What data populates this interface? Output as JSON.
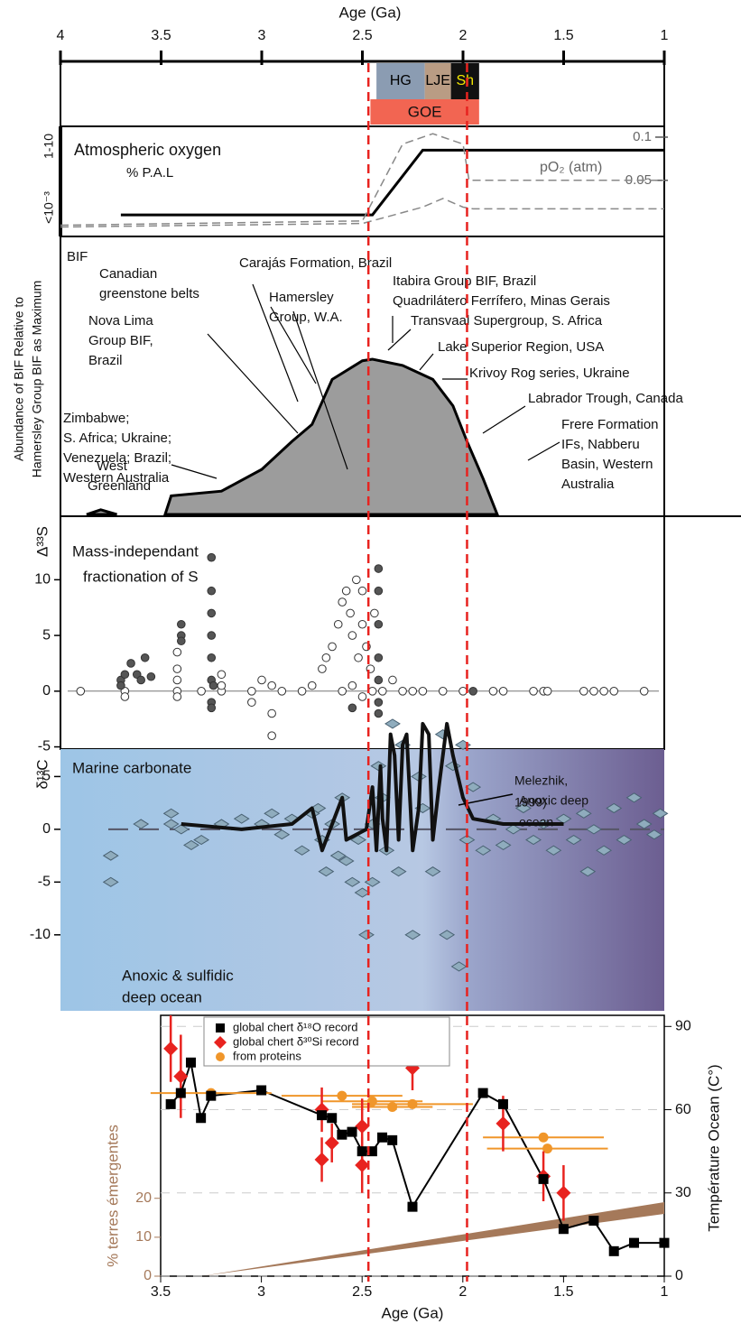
{
  "chart_data": [
    {
      "type": "axis",
      "title": "Age (Ga)",
      "xlim": [
        4,
        1
      ],
      "xticks": [
        4,
        3.5,
        3,
        2.5,
        2,
        1.5,
        1
      ]
    },
    {
      "type": "timeline",
      "xlim": [
        4,
        1
      ],
      "periods": [
        {
          "label": "HG",
          "start": 2.43,
          "end": 2.19,
          "color": "#8b9cb2",
          "text_color": "#000000"
        },
        {
          "label": "LJE",
          "start": 2.19,
          "end": 2.06,
          "color": "#b99c84",
          "text_color": "#000000"
        },
        {
          "label": "Sh",
          "start": 2.06,
          "end": 1.92,
          "color": "#111111",
          "text_color": "#f2e600"
        }
      ],
      "event": {
        "label": "GOE",
        "start": 2.46,
        "end": 1.92,
        "color": "#f26552",
        "text_color": "#111111"
      },
      "markers": [
        2.47,
        1.98
      ],
      "marker_color": "#e8231f"
    },
    {
      "type": "line",
      "title": "Atmospheric oxygen",
      "subtitle": "% P.A.L",
      "left_labels": [
        "1-10",
        "<10⁻³"
      ],
      "y2label": "pO₂ (atm)",
      "xlim": [
        4,
        1
      ],
      "y2lim": [
        -0.015,
        0.1125
      ],
      "y2ticks": [
        0.1,
        0.05
      ],
      "series": [
        {
          "color": "#000000",
          "dashed": false,
          "axis": "y2",
          "x": [
            3.7,
            2.45,
            2.2,
            1
          ],
          "values": [
            0.01,
            0.01,
            0.085,
            0.085
          ]
        },
        {
          "color": "#888888",
          "dashed": true,
          "axis": "y2",
          "x": [
            4,
            2.5,
            2.3,
            2.15,
            2.0,
            1.97,
            1
          ],
          "values": [
            -0.002,
            0.003,
            0.092,
            0.104,
            0.092,
            0.05,
            0.05
          ]
        },
        {
          "color": "#888888",
          "dashed": true,
          "axis": "y2",
          "x": [
            4,
            2.5,
            2.2,
            2.1,
            2.0,
            1.95,
            1
          ],
          "values": [
            -0.004,
            0,
            0.019,
            0.029,
            0.019,
            0.017,
            0.017
          ]
        }
      ]
    },
    {
      "type": "area",
      "title": "BIF",
      "ylabel": [
        "Abundance of BIF Relative to",
        "Hamersley Group BIF as Maximum"
      ],
      "xlim": [
        4,
        1
      ],
      "ylim": [
        0,
        100
      ],
      "color": "#9c9c9c",
      "x": [
        3.87,
        3.8,
        3.72,
        3.6,
        3.48,
        3.45,
        3.2,
        3.0,
        2.85,
        2.75,
        2.65,
        2.5,
        2.45,
        2.3,
        2.15,
        2.05,
        1.98,
        1.9,
        1.83
      ],
      "values": [
        0,
        3,
        0,
        null,
        0,
        12,
        15,
        29,
        47,
        58,
        87,
        99,
        100,
        96,
        87,
        70,
        47,
        23,
        0
      ],
      "annotations": [
        [
          "Carajás Formation, Brazil"
        ],
        [
          "Canadian",
          "greenstone belts"
        ],
        [
          "Hamersley",
          "Group, W.A."
        ],
        [
          "Itabira Group BIF, Brazil",
          "Quadrilátero Ferrífero, Minas Gerais"
        ],
        [
          "Transvaal Supergroup, S. Africa"
        ],
        [
          "Lake Superior Region, USA"
        ],
        [
          "Krivoy Rog series, Ukraine"
        ],
        [
          "Labrador Trough, Canada"
        ],
        [
          "Frere Formation",
          "IFs, Nabberu",
          "Basin, Western",
          "Australia"
        ],
        [
          "Nova Lima",
          "Group BIF,",
          "Brazil"
        ],
        [
          "Zimbabwe;",
          "S. Africa; Ukraine;",
          "Venezuela; Brazil;",
          "Western Australia"
        ],
        [
          "West",
          "Greenland"
        ]
      ]
    },
    {
      "type": "scatter",
      "title": [
        "Mass-independant",
        "fractionation of S"
      ],
      "ylabel": "Δ³³S",
      "xlim": [
        4,
        1
      ],
      "ylim": [
        -5.2,
        15.7
      ],
      "yticks": [
        -5,
        0,
        5,
        10
      ],
      "series": [
        {
          "color": "#ffffff",
          "x": [
            3.9,
            3.68,
            3.68,
            3.42,
            3.42,
            3.42,
            3.42,
            3.42,
            3.3,
            3.2,
            3.2,
            3.2,
            3.05,
            3.05,
            3.0,
            2.95,
            2.95,
            2.95,
            2.9,
            2.8,
            2.75,
            2.7,
            2.68,
            2.65,
            2.62,
            2.6,
            2.58,
            2.56,
            2.55,
            2.53,
            2.52,
            2.5,
            2.5,
            2.48,
            2.46,
            2.45,
            2.44,
            2.6,
            2.55,
            2.5,
            2.4,
            2.35,
            2.3,
            2.25,
            2.2,
            2.1,
            2.0,
            1.85,
            1.8,
            1.65,
            1.6,
            1.58,
            1.4,
            1.35,
            1.3,
            1.25,
            1.1
          ],
          "values": [
            0,
            0,
            -0.5,
            0,
            1,
            2,
            3.5,
            -0.5,
            0,
            0,
            1.5,
            0.5,
            0,
            -1,
            1,
            0.5,
            -2,
            -4,
            0,
            0,
            0.5,
            2,
            3,
            4,
            6,
            8,
            9,
            7,
            5,
            10,
            3,
            6,
            9,
            4,
            2,
            0,
            7,
            0,
            0.5,
            -0.5,
            0,
            1,
            0,
            0,
            0,
            0,
            0,
            0,
            0,
            0,
            0,
            0,
            0,
            0,
            0,
            0,
            0
          ]
        },
        {
          "color": "#555555",
          "x": [
            3.7,
            3.68,
            3.65,
            3.62,
            3.6,
            3.58,
            3.55,
            3.7,
            3.4,
            3.4,
            3.4,
            3.25,
            3.25,
            3.25,
            3.25,
            3.25,
            3.25,
            3.25,
            3.25,
            3.24,
            2.55,
            2.42,
            2.42,
            2.42,
            2.42,
            2.42,
            2.42,
            2.42,
            1.95
          ],
          "values": [
            1,
            1.5,
            2.5,
            1.5,
            1,
            3,
            1.3,
            0.5,
            6,
            5,
            4.5,
            12,
            9,
            7,
            5,
            3,
            1,
            -1,
            -1.5,
            0.5,
            -1.5,
            11,
            9,
            6,
            3,
            1,
            -1,
            -2,
            0
          ]
        }
      ]
    },
    {
      "type": "scatter",
      "title": "Marine carbonate",
      "ylabel": "δ¹³C",
      "xlim": [
        4,
        1
      ],
      "ylim": [
        -17.2,
        7.6
      ],
      "yticks": [
        -10,
        -5,
        0,
        5
      ],
      "annotations": [
        [
          "Melezhik,",
          "1999)"
        ],
        [
          "Anoxic deep",
          "ocean"
        ],
        [
          "Anoxic & sulfidic",
          "deep ocean"
        ]
      ],
      "points": {
        "color": "#8facbd",
        "x": [
          3.75,
          3.75,
          3.6,
          3.45,
          3.45,
          3.4,
          3.35,
          3.3,
          3.2,
          3.1,
          3.0,
          2.95,
          2.9,
          2.85,
          2.8,
          2.75,
          2.72,
          2.7,
          2.68,
          2.65,
          2.62,
          2.6,
          2.58,
          2.55,
          2.52,
          2.5,
          2.48,
          2.45,
          2.45,
          2.42,
          2.4,
          2.38,
          2.35,
          2.32,
          2.3,
          2.25,
          2.22,
          2.2,
          2.15,
          2.1,
          2.08,
          2.05,
          2.02,
          2.0,
          1.98,
          1.95,
          1.9,
          1.85,
          1.8,
          1.75,
          1.7,
          1.65,
          1.6,
          1.55,
          1.5,
          1.45,
          1.4,
          1.38,
          1.35,
          1.3,
          1.25,
          1.2,
          1.15,
          1.1,
          1.05,
          1.02
        ],
        "values": [
          -2.5,
          -5,
          0.5,
          1.5,
          0.5,
          0,
          -1.5,
          -1,
          0.5,
          1,
          0.5,
          1.5,
          -0.5,
          1,
          -2,
          1.5,
          2,
          -1,
          -4,
          0.5,
          -2.5,
          3,
          -3,
          -5,
          -1,
          -6,
          -10,
          -5,
          0.5,
          6,
          3,
          -2,
          10,
          -4,
          8,
          -10,
          5,
          2,
          -4,
          9,
          -10,
          6,
          -13,
          8,
          -1,
          4,
          -2,
          1,
          -1.5,
          0,
          2,
          -1,
          0.5,
          -2,
          1,
          -1,
          1.5,
          -4,
          0,
          -2,
          2,
          -1,
          3,
          0.5,
          -0.5,
          1.5
        ]
      },
      "curve": {
        "color": "#111111",
        "x": [
          3.4,
          3.1,
          2.85,
          2.75,
          2.7,
          2.6,
          2.58,
          2.48,
          2.45,
          2.43,
          2.41,
          2.4,
          2.38,
          2.36,
          2.34,
          2.32,
          2.3,
          2.28,
          2.25,
          2.22,
          2.2,
          2.17,
          2.15,
          2.12,
          2.08,
          2.05,
          2.0,
          1.95,
          1.8,
          1.5
        ],
        "values": [
          0.5,
          0,
          0.5,
          2,
          -2,
          3,
          -1,
          0,
          4,
          -2,
          6,
          1,
          -2,
          9,
          7,
          -1,
          8,
          9,
          -2,
          2,
          10,
          9,
          -1,
          4,
          10,
          7,
          3,
          1,
          0.5,
          0.5
        ]
      }
    },
    {
      "type": "scatter",
      "xlabel": "Age (Ga)",
      "ylabel": "% terres émergentes",
      "y2label": "Température Ocean (C°)",
      "xlim": [
        3.5,
        1
      ],
      "xticks": [
        3.5,
        3,
        2.5,
        2,
        1.5,
        1
      ],
      "ylim": [
        0,
        67
      ],
      "yticks": [
        0,
        10,
        20
      ],
      "y2lim": [
        0,
        94
      ],
      "y2ticks": [
        0,
        30,
        60,
        90
      ],
      "label_color": "#a5795a",
      "band": {
        "color": "#a5795a",
        "x": [
          3.3,
          1
        ],
        "low": [
          0,
          16
        ],
        "high": [
          0,
          19
        ]
      },
      "series": [
        {
          "name": "global chert δ¹⁸O record",
          "color": "#000000",
          "marker": "square",
          "axis": "y2",
          "x": [
            3.45,
            3.4,
            3.35,
            3.3,
            3.25,
            3.0,
            2.7,
            2.65,
            2.6,
            2.55,
            2.5,
            2.45,
            2.4,
            2.35,
            2.25,
            1.9,
            1.8,
            1.6,
            1.5,
            1.35,
            1.25,
            1.15,
            1.0
          ],
          "values": [
            62,
            66,
            77,
            57,
            65,
            67,
            58,
            57,
            51,
            52,
            45,
            45,
            50,
            49,
            25,
            66,
            62,
            35,
            17,
            20,
            9,
            12,
            12
          ]
        },
        {
          "name": "global chert δ³⁰Si record",
          "color": "#e8231f",
          "marker": "diamond",
          "axis": "y2",
          "x": [
            3.45,
            3.4,
            2.7,
            2.7,
            2.65,
            2.5,
            2.5,
            2.25,
            1.8,
            1.6,
            1.5
          ],
          "values": [
            82,
            72,
            60,
            42,
            48,
            54,
            40,
            75,
            55,
            36,
            30
          ],
          "errors": [
            12,
            15,
            8,
            8,
            7,
            10,
            10,
            8,
            10,
            9,
            10
          ]
        },
        {
          "name": "from proteins",
          "color": "#f0962a",
          "marker": "circle",
          "axis": "y2",
          "x": [
            3.25,
            2.6,
            2.45,
            2.35,
            2.25,
            1.6,
            1.58
          ],
          "values": [
            66,
            65,
            63,
            61,
            62,
            50,
            46
          ],
          "xerrors": [
            0.3,
            0.3,
            0.25,
            0.2,
            0.3,
            0.3,
            0.3
          ]
        }
      ]
    }
  ]
}
